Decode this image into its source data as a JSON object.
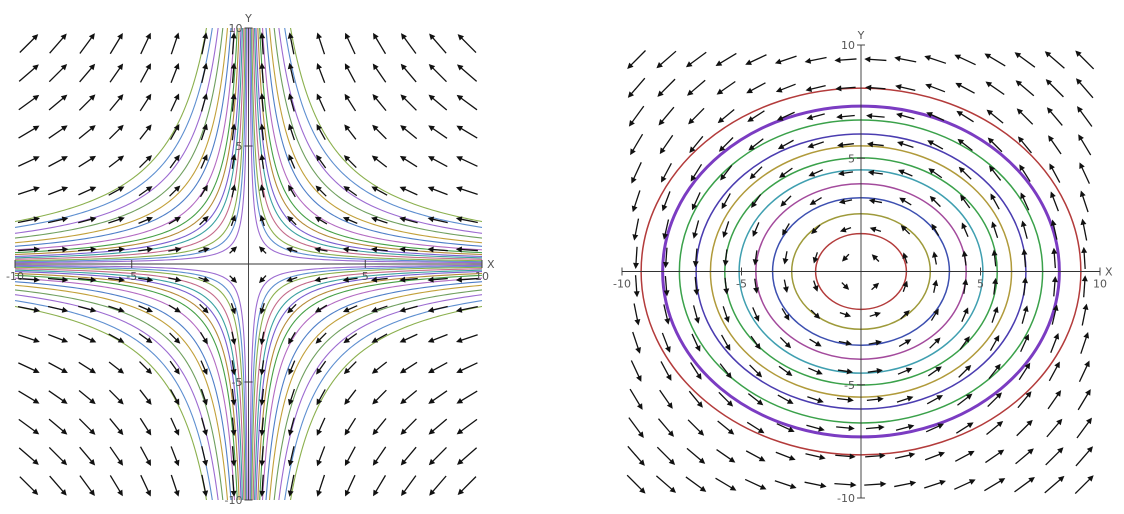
{
  "chart_data": [
    {
      "type": "vector-field",
      "field": "saddle",
      "xlim": [
        -10,
        10
      ],
      "ylim": [
        -10,
        10
      ],
      "xlabel": "X",
      "ylabel": "Y",
      "x_ticks": [
        {
          "value": -10,
          "label": "-10"
        },
        {
          "value": -5,
          "label": "-5"
        },
        {
          "value": 5,
          "label": "5"
        },
        {
          "value": 10,
          "label": "10"
        }
      ],
      "y_ticks": [
        {
          "value": -10,
          "label": "-10"
        },
        {
          "value": -5,
          "label": "-5"
        },
        {
          "value": 5,
          "label": "5"
        },
        {
          "value": 10,
          "label": "10"
        }
      ],
      "stream_lines": {
        "shape": "hyperbola",
        "xy_constants": [
          0.6,
          1.0,
          1.4,
          2.0,
          2.6,
          3.2,
          4.0,
          4.8,
          6.0,
          7.5,
          9.0,
          11.0,
          13.0,
          15.5,
          18.0
        ],
        "colors": [
          "#9c6bd1",
          "#5e8fd0",
          "#8bb04e",
          "#c46b8a",
          "#3aa1a0",
          "#7a5fd0",
          "#b58b3a",
          "#46a046",
          "#b36bc2",
          "#4f7fc8",
          "#c2a03a",
          "#6f9f5e"
        ]
      },
      "grid": false
    },
    {
      "type": "vector-field",
      "field": "center",
      "xlim": [
        -10,
        10
      ],
      "ylim": [
        -10,
        10
      ],
      "xlabel": "X",
      "ylabel": "Y",
      "x_ticks": [
        {
          "value": -10,
          "label": "-10"
        },
        {
          "value": -5,
          "label": "-5"
        },
        {
          "value": 5,
          "label": "5"
        },
        {
          "value": 10,
          "label": "10"
        }
      ],
      "y_ticks": [
        {
          "value": -10,
          "label": "-10"
        },
        {
          "value": -5,
          "label": "-5"
        },
        {
          "value": 5,
          "label": "5"
        },
        {
          "value": 10,
          "label": "10"
        }
      ],
      "stream_lines": {
        "shape": "ellipse",
        "x_radii": [
          1.9,
          2.9,
          3.7,
          4.4,
          5.1,
          5.7,
          6.3,
          6.9,
          7.6,
          8.3,
          9.2
        ],
        "aspect_y_over_x": 0.88,
        "colors": [
          "#b33b3b",
          "#9e9a3a",
          "#3c4fb0",
          "#a34a9c",
          "#3f9fb0",
          "#3aa14a",
          "#b09a3a",
          "#4a3cb0",
          "#3aa14a",
          "#7b3cc2",
          "#b33b3b"
        ]
      },
      "grid": false
    }
  ]
}
